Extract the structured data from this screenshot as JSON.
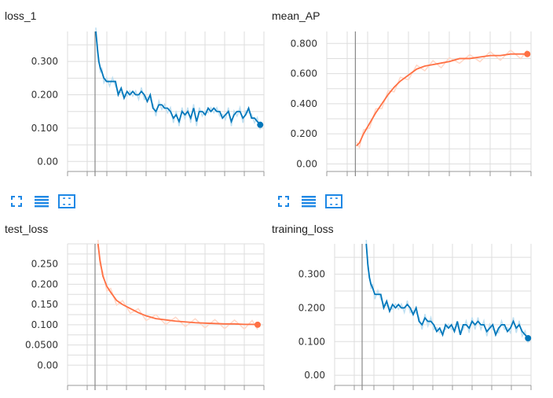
{
  "colors": {
    "blue": "#0077bb",
    "blue_raw": "#bfe0f2",
    "orange": "#ff7043",
    "orange_raw": "#ffd8c8",
    "grid": "#dddddd",
    "tick_text": "#333333"
  },
  "controls": [
    {
      "icons": [
        "fullscreen-icon",
        "data-list-icon",
        "fit-domain-icon"
      ]
    },
    {
      "icons": [
        "fullscreen-icon",
        "data-list-icon",
        "fit-domain-icon"
      ]
    }
  ],
  "chart_data": [
    {
      "type": "line",
      "title": "loss_1",
      "color": "#0077bb",
      "raw_color": "#bfe0f2",
      "ylim": [
        -0.03,
        0.39
      ],
      "xlim": [
        0,
        100
      ],
      "yticks": [
        0,
        0.1,
        0.2,
        0.3
      ],
      "ytick_labels": [
        "0.00",
        "0.100",
        "0.200",
        "0.300"
      ],
      "grid": true,
      "x_origin": 14,
      "series": [
        {
          "x": [
            14.4,
            15.2,
            15.9,
            16.7,
            17.4,
            18.5,
            19.9,
            21.4,
            22.9,
            24.4,
            25.8,
            27.3,
            28.8,
            30.3,
            31.7,
            33.2,
            34.7,
            36.2,
            37.6,
            39.1,
            40.6,
            42.1,
            43.5,
            45.0,
            46.5,
            48.0,
            49.4,
            50.9,
            52.4,
            53.9,
            55.3,
            56.8,
            58.3,
            59.8,
            61.2,
            62.7,
            64.2,
            65.7,
            67.1,
            68.6,
            70.1,
            71.6,
            73.0,
            74.5,
            76.0,
            77.5,
            78.9,
            80.4,
            81.9,
            83.4,
            84.8,
            86.3,
            87.8,
            89.3,
            90.7,
            92.2,
            93.7,
            95.2,
            96.6,
            98.1
          ],
          "y": [
            0.39,
            0.34,
            0.3,
            0.28,
            0.27,
            0.25,
            0.24,
            0.24,
            0.24,
            0.24,
            0.2,
            0.22,
            0.19,
            0.21,
            0.2,
            0.21,
            0.2,
            0.2,
            0.21,
            0.2,
            0.18,
            0.2,
            0.16,
            0.15,
            0.17,
            0.17,
            0.16,
            0.16,
            0.15,
            0.13,
            0.14,
            0.12,
            0.15,
            0.14,
            0.15,
            0.13,
            0.16,
            0.12,
            0.15,
            0.15,
            0.14,
            0.16,
            0.15,
            0.16,
            0.15,
            0.15,
            0.13,
            0.14,
            0.15,
            0.12,
            0.14,
            0.15,
            0.15,
            0.13,
            0.14,
            0.16,
            0.13,
            0.13,
            0.12,
            0.11
          ],
          "end_value": 0.11
        }
      ]
    },
    {
      "type": "line",
      "title": "mean_AP",
      "color": "#ff7043",
      "raw_color": "#ffd8c8",
      "ylim": [
        -0.05,
        0.88
      ],
      "xlim": [
        0,
        100
      ],
      "yticks": [
        0,
        0.2,
        0.4,
        0.6,
        0.8
      ],
      "ytick_labels": [
        "0.00",
        "0.200",
        "0.400",
        "0.600",
        "0.800"
      ],
      "grid": true,
      "x_origin": 14,
      "series": [
        {
          "x": [
            14.5,
            16,
            18,
            21,
            24,
            27,
            30,
            33,
            36,
            40,
            44,
            48,
            52,
            56,
            60,
            65,
            70,
            75,
            80,
            85,
            90,
            95,
            98.2
          ],
          "y": [
            0.12,
            0.14,
            0.2,
            0.27,
            0.34,
            0.4,
            0.46,
            0.51,
            0.55,
            0.59,
            0.63,
            0.65,
            0.66,
            0.67,
            0.68,
            0.7,
            0.7,
            0.71,
            0.72,
            0.72,
            0.73,
            0.73,
            0.73
          ],
          "end_value": 0.73
        }
      ]
    },
    {
      "type": "line",
      "title": "test_loss",
      "color": "#ff7043",
      "raw_color": "#ffd8c8",
      "ylim": [
        -0.05,
        0.3
      ],
      "xlim": [
        0,
        100
      ],
      "yticks": [
        0,
        0.05,
        0.1,
        0.15,
        0.2,
        0.25
      ],
      "ytick_labels": [
        "0.00",
        "0.0500",
        "0.100",
        "0.150",
        "0.200",
        "0.250"
      ],
      "grid": true,
      "x_origin": 14,
      "series": [
        {
          "x": [
            15.5,
            16.5,
            18,
            20,
            22,
            25,
            28,
            32,
            36,
            40,
            45,
            50,
            55,
            60,
            65,
            70,
            75,
            80,
            85,
            90,
            94,
            96.8
          ],
          "y": [
            0.3,
            0.26,
            0.22,
            0.195,
            0.18,
            0.16,
            0.15,
            0.14,
            0.13,
            0.122,
            0.115,
            0.112,
            0.109,
            0.107,
            0.105,
            0.104,
            0.103,
            0.102,
            0.102,
            0.101,
            0.101,
            0.1
          ],
          "end_value": 0.1
        }
      ]
    },
    {
      "type": "line",
      "title": "training_loss",
      "color": "#0077bb",
      "raw_color": "#bfe0f2",
      "ylim": [
        -0.03,
        0.39
      ],
      "xlim": [
        0,
        100
      ],
      "yticks": [
        0,
        0.1,
        0.2,
        0.3
      ],
      "ytick_labels": [
        "0.00",
        "0.100",
        "0.200",
        "0.300"
      ],
      "grid": true,
      "x_origin": 14,
      "series": [
        {
          "x": [
            16.1,
            16.9,
            17.7,
            18.5,
            19.3,
            20.5,
            22.0,
            23.5,
            25.0,
            26.5,
            28.0,
            29.5,
            31.0,
            32.5,
            34.0,
            35.5,
            37.0,
            38.5,
            40.0,
            41.5,
            43.0,
            44.5,
            46.0,
            47.5,
            49.0,
            50.5,
            52.0,
            53.5,
            55.0,
            56.5,
            58.0,
            59.5,
            61.0,
            62.5,
            64.0,
            65.5,
            67.0,
            68.5,
            70.0,
            71.5,
            73.0,
            74.5,
            76.0,
            77.5,
            79.0,
            80.5,
            82.0,
            83.5,
            85.0,
            86.5,
            88.0,
            89.5,
            91.0,
            92.5,
            94.0,
            95.5,
            97.0,
            98.5
          ],
          "y": [
            0.39,
            0.33,
            0.29,
            0.27,
            0.26,
            0.24,
            0.24,
            0.24,
            0.2,
            0.22,
            0.19,
            0.21,
            0.2,
            0.21,
            0.2,
            0.2,
            0.21,
            0.2,
            0.18,
            0.2,
            0.16,
            0.15,
            0.17,
            0.16,
            0.16,
            0.15,
            0.13,
            0.14,
            0.12,
            0.15,
            0.14,
            0.15,
            0.13,
            0.16,
            0.12,
            0.15,
            0.15,
            0.14,
            0.16,
            0.15,
            0.16,
            0.15,
            0.15,
            0.13,
            0.14,
            0.15,
            0.12,
            0.14,
            0.15,
            0.15,
            0.13,
            0.14,
            0.16,
            0.14,
            0.15,
            0.13,
            0.12,
            0.11
          ],
          "end_value": 0.11
        }
      ]
    }
  ]
}
